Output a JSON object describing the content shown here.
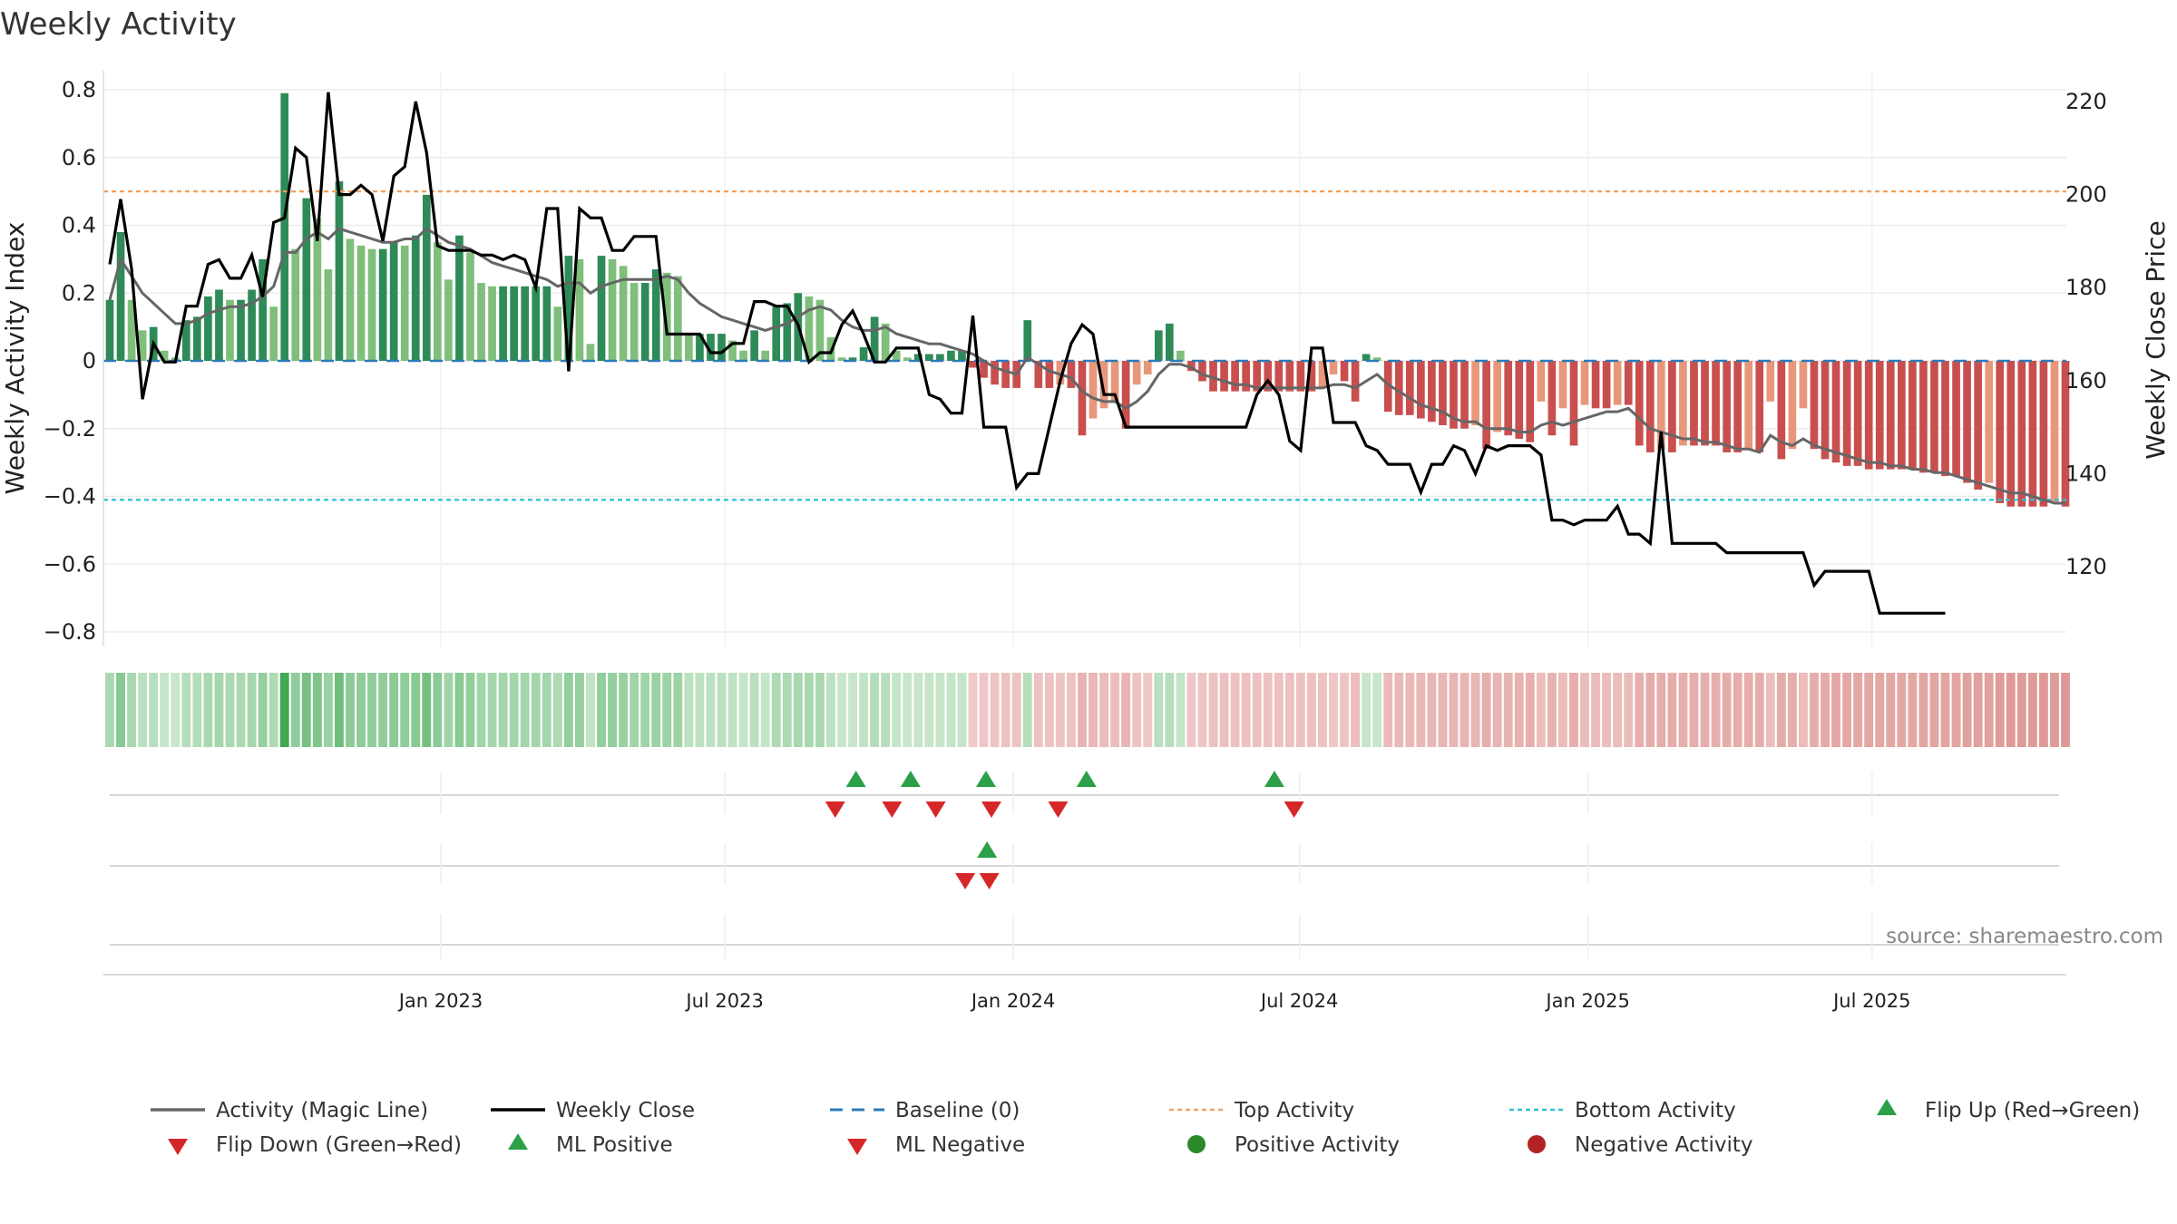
{
  "chart_data": {
    "type": "bar+line",
    "title": "Weekly Activity",
    "ylabel_left": "Weekly Activity Index",
    "ylabel_right": "Weekly Close Price",
    "y_left_ticks": [
      "0.8",
      "0.6",
      "0.4",
      "0.2",
      "0",
      "−0.2",
      "−0.4",
      "−0.6",
      "−0.8"
    ],
    "y_left_tick_values": [
      0.8,
      0.6,
      0.4,
      0.2,
      0,
      -0.2,
      -0.4,
      -0.6,
      -0.8
    ],
    "y_right_ticks": [
      "220",
      "200",
      "180",
      "160",
      "140",
      "120"
    ],
    "y_right_tick_values": [
      220,
      200,
      180,
      160,
      140,
      120
    ],
    "x_ticks": [
      "Jan 2023",
      "Jul 2023",
      "Jan 2024",
      "Jul 2024",
      "Jan 2025",
      "Jul 2025"
    ],
    "x_tick_weeks": [
      30.3,
      56.3,
      82.7,
      108.9,
      135.3,
      161.3
    ],
    "ylim_left": [
      -0.85,
      0.85
    ],
    "ylim_right": [
      103.6,
      226.6
    ],
    "top_activity": 0.5,
    "bottom_activity": -0.41,
    "baseline": 0,
    "source": "source: sharemaestro.com",
    "activity_bars": [
      0.18,
      0.38,
      0.18,
      0.09,
      0.1,
      0.03,
      0.01,
      0.12,
      0.13,
      0.19,
      0.21,
      0.18,
      0.18,
      0.21,
      0.3,
      0.16,
      0.79,
      0.33,
      0.48,
      0.42,
      0.27,
      0.53,
      0.36,
      0.34,
      0.33,
      0.33,
      0.35,
      0.34,
      0.37,
      0.49,
      0.35,
      0.24,
      0.37,
      0.32,
      0.23,
      0.22,
      0.22,
      0.22,
      0.22,
      0.22,
      0.22,
      0.16,
      0.31,
      0.3,
      0.05,
      0.31,
      0.3,
      0.28,
      0.23,
      0.23,
      0.27,
      0.26,
      0.25,
      0.08,
      0.08,
      0.08,
      0.08,
      0.06,
      0.03,
      0.09,
      0.03,
      0.16,
      0.17,
      0.2,
      0.19,
      0.18,
      0.07,
      0.01,
      0.01,
      0.04,
      0.13,
      0.11,
      0.03,
      0.01,
      0.02,
      0.02,
      0.02,
      0.03,
      0.03,
      -0.02,
      -0.05,
      -0.07,
      -0.08,
      -0.08,
      0.12,
      -0.08,
      -0.08,
      -0.07,
      -0.08,
      -0.22,
      -0.17,
      -0.14,
      -0.12,
      -0.2,
      -0.07,
      -0.04,
      0.09,
      0.11,
      0.03,
      -0.03,
      -0.06,
      -0.09,
      -0.09,
      -0.09,
      -0.09,
      -0.09,
      -0.09,
      -0.09,
      -0.09,
      -0.09,
      -0.09,
      -0.08,
      -0.04,
      -0.06,
      -0.12,
      0.02,
      0.01,
      -0.15,
      -0.16,
      -0.16,
      -0.17,
      -0.18,
      -0.19,
      -0.2,
      -0.2,
      -0.19,
      -0.26,
      -0.21,
      -0.22,
      -0.23,
      -0.24,
      -0.12,
      -0.22,
      -0.14,
      -0.25,
      -0.13,
      -0.14,
      -0.14,
      -0.13,
      -0.13,
      -0.25,
      -0.27,
      -0.26,
      -0.27,
      -0.25,
      -0.25,
      -0.25,
      -0.25,
      -0.27,
      -0.27,
      -0.26,
      -0.27,
      -0.12,
      -0.29,
      -0.26,
      -0.14,
      -0.26,
      -0.29,
      -0.3,
      -0.31,
      -0.31,
      -0.32,
      -0.32,
      -0.32,
      -0.32,
      -0.32,
      -0.33,
      -0.33,
      -0.34,
      -0.34,
      -0.36,
      -0.38,
      -0.36,
      -0.42,
      -0.43,
      -0.43,
      -0.43,
      -0.43,
      -0.42,
      -0.43
    ],
    "magic_line": [
      0.18,
      0.3,
      0.25,
      0.2,
      0.17,
      0.14,
      0.11,
      0.11,
      0.12,
      0.14,
      0.15,
      0.16,
      0.16,
      0.17,
      0.19,
      0.22,
      0.32,
      0.32,
      0.36,
      0.38,
      0.36,
      0.39,
      0.38,
      0.37,
      0.36,
      0.35,
      0.35,
      0.36,
      0.36,
      0.39,
      0.37,
      0.35,
      0.34,
      0.33,
      0.31,
      0.29,
      0.28,
      0.27,
      0.26,
      0.25,
      0.24,
      0.22,
      0.23,
      0.23,
      0.2,
      0.22,
      0.23,
      0.24,
      0.24,
      0.24,
      0.24,
      0.25,
      0.24,
      0.2,
      0.17,
      0.15,
      0.13,
      0.12,
      0.11,
      0.1,
      0.09,
      0.1,
      0.11,
      0.13,
      0.15,
      0.16,
      0.15,
      0.12,
      0.1,
      0.09,
      0.09,
      0.1,
      0.08,
      0.07,
      0.06,
      0.05,
      0.05,
      0.04,
      0.03,
      0.02,
      0.0,
      -0.02,
      -0.03,
      -0.04,
      0.01,
      -0.01,
      -0.03,
      -0.04,
      -0.05,
      -0.09,
      -0.11,
      -0.12,
      -0.12,
      -0.14,
      -0.12,
      -0.09,
      -0.04,
      -0.01,
      -0.01,
      -0.02,
      -0.04,
      -0.05,
      -0.06,
      -0.07,
      -0.07,
      -0.08,
      -0.08,
      -0.08,
      -0.08,
      -0.08,
      -0.08,
      -0.08,
      -0.07,
      -0.07,
      -0.08,
      -0.06,
      -0.04,
      -0.07,
      -0.09,
      -0.11,
      -0.13,
      -0.14,
      -0.15,
      -0.17,
      -0.18,
      -0.18,
      -0.2,
      -0.2,
      -0.2,
      -0.21,
      -0.21,
      -0.19,
      -0.18,
      -0.19,
      -0.18,
      -0.17,
      -0.16,
      -0.15,
      -0.15,
      -0.14,
      -0.17,
      -0.2,
      -0.21,
      -0.22,
      -0.23,
      -0.23,
      -0.24,
      -0.24,
      -0.25,
      -0.26,
      -0.26,
      -0.27,
      -0.22,
      -0.24,
      -0.25,
      -0.23,
      -0.25,
      -0.26,
      -0.27,
      -0.28,
      -0.29,
      -0.3,
      -0.3,
      -0.31,
      -0.31,
      -0.32,
      -0.32,
      -0.33,
      -0.33,
      -0.34,
      -0.35,
      -0.36,
      -0.37,
      -0.38,
      -0.39,
      -0.39,
      -0.4,
      -0.41,
      -0.42,
      -0.42
    ],
    "weekly_close": [
      185,
      199,
      184,
      156,
      168,
      164,
      164,
      176,
      176,
      185,
      186,
      182,
      182,
      187,
      178,
      194,
      195,
      210,
      208,
      190,
      222,
      200,
      200,
      202,
      200,
      190,
      204,
      206,
      220,
      209,
      189,
      188,
      188,
      188,
      187,
      187,
      186,
      187,
      186,
      180,
      197,
      197,
      162,
      197,
      195,
      195,
      188,
      188,
      191,
      191,
      191,
      170,
      170,
      170,
      170,
      166,
      166,
      168,
      168,
      177,
      177,
      176,
      176,
      172,
      164,
      166,
      166,
      172,
      175,
      170,
      164,
      164,
      167,
      167,
      167,
      157,
      156,
      153,
      153,
      174,
      150,
      150,
      150,
      137,
      140,
      140,
      150,
      160,
      168,
      172,
      170,
      157,
      157,
      150,
      150,
      150,
      150,
      150,
      150,
      150,
      150,
      150,
      150,
      150,
      150,
      157,
      160,
      157,
      147,
      145,
      167,
      167,
      151,
      151,
      151,
      146,
      145,
      142,
      142,
      142,
      136,
      142,
      142,
      146,
      145,
      140,
      146,
      145,
      146,
      146,
      146,
      144,
      130,
      130,
      129,
      130,
      130,
      130,
      133,
      127,
      127,
      125,
      149,
      125,
      125,
      125,
      125,
      125,
      123,
      123,
      123,
      123,
      123,
      123,
      123,
      123,
      116,
      119,
      119,
      119,
      119,
      119,
      110,
      110,
      110,
      110,
      110,
      110,
      110
    ],
    "flip_up": [
      68.3,
      73.3,
      80.2,
      89.4,
      106.6
    ],
    "flip_down": [
      66.4,
      71.6,
      75.6,
      80.7,
      86.8,
      108.4
    ],
    "ml_positive": [
      80.3
    ],
    "ml_negative": [
      78.3,
      80.5
    ]
  },
  "legend": [
    {
      "label": "Activity (Magic Line)",
      "icon": "line-icon",
      "color": "#666666"
    },
    {
      "label": "Weekly Close",
      "icon": "line-icon",
      "color": "#000000"
    },
    {
      "label": "Baseline (0)",
      "icon": "dashed-line-icon",
      "color": "#2b7bba"
    },
    {
      "label": "Top Activity",
      "icon": "dotted-line-icon",
      "color": "#f0a060"
    },
    {
      "label": "Bottom Activity",
      "icon": "dotted-line-icon",
      "color": "#30c0d0"
    },
    {
      "label": "Flip Up (Red→Green)",
      "icon": "triangle-up-icon",
      "color": "#2ca048"
    },
    {
      "label": "Flip Down (Green→Red)",
      "icon": "triangle-down-icon",
      "color": "#d62728"
    },
    {
      "label": "ML Positive",
      "icon": "triangle-up-icon",
      "color": "#2ca048"
    },
    {
      "label": "ML Negative",
      "icon": "triangle-down-icon",
      "color": "#d62728"
    },
    {
      "label": "Positive Activity",
      "icon": "circle-icon",
      "color": "#2a8a2a"
    },
    {
      "label": "Negative Activity",
      "icon": "circle-icon",
      "color": "#b22222"
    }
  ],
  "colors": {
    "pos_dark": "#2e8b57",
    "pos_light": "#7fbf7b",
    "neg_dark": "#c94f4f",
    "neg_light": "#e8977a",
    "magic": "#666666",
    "close": "#000000",
    "baseline": "#2b7bba",
    "top": "#f0a060",
    "bottom": "#30c0d0",
    "green_marker": "#2ca048",
    "red_marker": "#d62728"
  }
}
